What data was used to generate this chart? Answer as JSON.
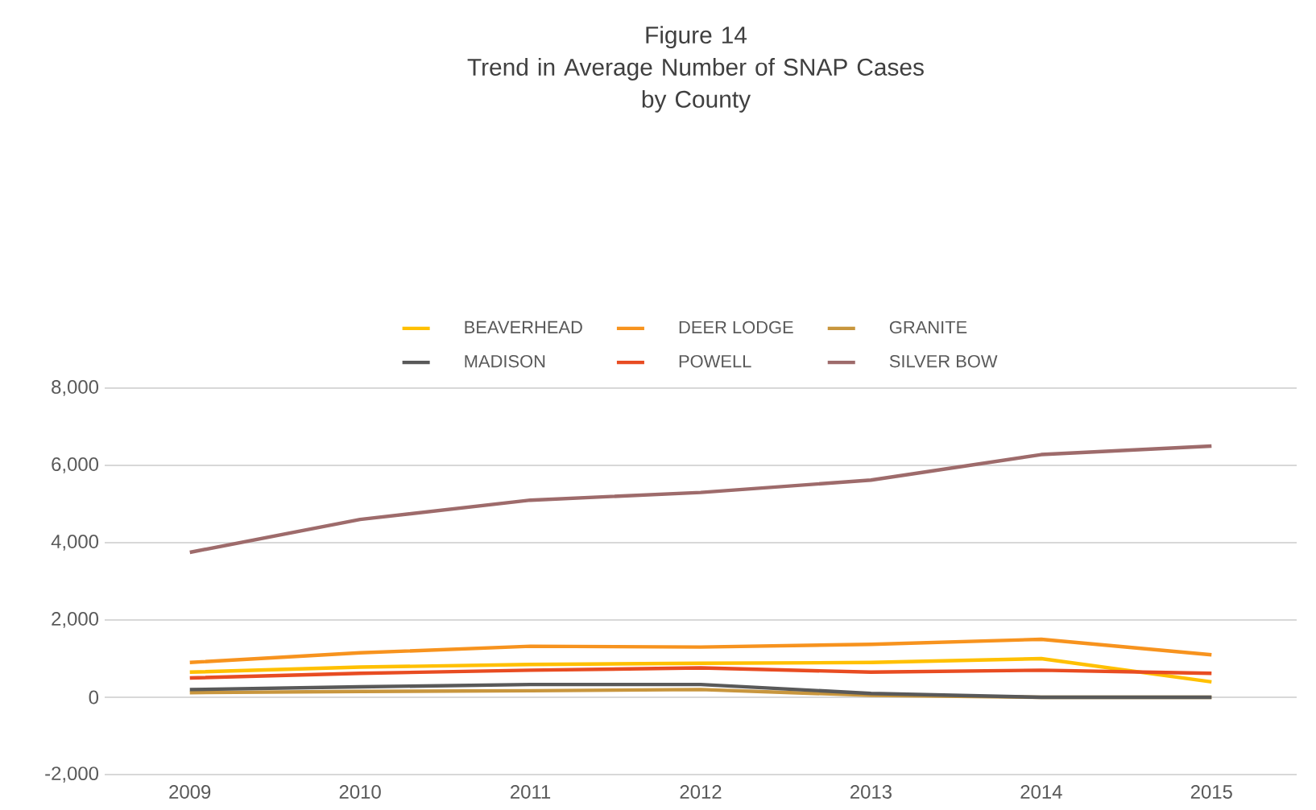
{
  "chart_data": {
    "type": "line",
    "title": "Figure 14\nTrend in Average Number of SNAP Cases\nby  County",
    "categories": [
      "2009",
      "2010",
      "2011",
      "2012",
      "2013",
      "2014",
      "2015"
    ],
    "series": [
      {
        "name": "BEAVERHEAD",
        "color": "#ffc000",
        "values": [
          650,
          780,
          850,
          880,
          900,
          1000,
          400
        ]
      },
      {
        "name": "DEER LODGE",
        "color": "#f7931e",
        "values": [
          900,
          1150,
          1320,
          1300,
          1370,
          1500,
          1100
        ]
      },
      {
        "name": "GRANITE",
        "color": "#c8963e",
        "values": [
          120,
          150,
          170,
          200,
          50,
          0,
          0
        ]
      },
      {
        "name": "MADISON",
        "color": "#595959",
        "values": [
          200,
          270,
          330,
          330,
          100,
          0,
          0
        ]
      },
      {
        "name": "POWELL",
        "color": "#e84c22",
        "values": [
          500,
          620,
          700,
          760,
          650,
          700,
          620
        ]
      },
      {
        "name": "SILVER BOW",
        "color": "#9e6b6b",
        "values": [
          3750,
          4600,
          5100,
          5300,
          5620,
          6280,
          6500
        ]
      }
    ],
    "ylim": [
      -2000,
      8000
    ],
    "yticks": [
      {
        "value": -2000,
        "label": "-2,000"
      },
      {
        "value": 0,
        "label": "0"
      },
      {
        "value": 2000,
        "label": "2,000"
      },
      {
        "value": 4000,
        "label": "4,000"
      },
      {
        "value": 6000,
        "label": "6,000"
      },
      {
        "value": 8000,
        "label": "8,000"
      }
    ],
    "grid": "y",
    "legend": "top",
    "marker": "none",
    "line_style": "solid"
  }
}
